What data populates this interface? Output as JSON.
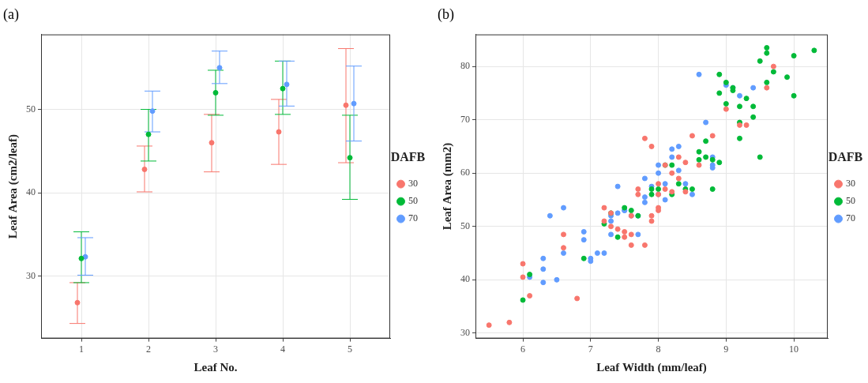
{
  "chart_data": [
    {
      "type": "scatter",
      "title": "(a)",
      "x_label": "Leaf No.",
      "y_label": "Leaf Area (cm2/leaf)",
      "legend_title": "DAFB",
      "legend": "right",
      "grid": true,
      "marker": "circle",
      "x": [
        1,
        2,
        3,
        4,
        5
      ],
      "xlim": [
        0.4,
        5.6
      ],
      "xticks": [
        1,
        2,
        3,
        4,
        5
      ],
      "ylim": [
        22.5,
        59
      ],
      "yticks": [
        30,
        40,
        50
      ],
      "series": [
        {
          "name": "30",
          "color": "#F8766D",
          "values": [
            26.8,
            42.8,
            46.0,
            47.3,
            50.5
          ],
          "error_low": [
            24.3,
            40.1,
            42.5,
            43.4,
            43.6
          ],
          "error_high": [
            29.2,
            45.6,
            49.4,
            51.2,
            57.3
          ]
        },
        {
          "name": "50",
          "color": "#00BA38",
          "values": [
            32.1,
            47.0,
            52.0,
            52.5,
            44.2
          ],
          "error_low": [
            29.2,
            43.8,
            49.3,
            49.4,
            39.2
          ],
          "error_high": [
            35.3,
            50.0,
            54.7,
            55.8,
            49.3
          ]
        },
        {
          "name": "70",
          "color": "#619CFF",
          "values": [
            32.3,
            49.8,
            55.0,
            53.0,
            50.7
          ],
          "error_low": [
            30.1,
            47.3,
            53.1,
            50.4,
            46.2
          ],
          "error_high": [
            34.6,
            52.2,
            57.0,
            55.8,
            55.2
          ]
        }
      ]
    },
    {
      "type": "scatter",
      "title": "(b)",
      "x_label": "Leaf Width (mm/leaf)",
      "y_label": "Leaf Area (mm2)",
      "legend_title": "DAFB",
      "legend": "right",
      "grid": true,
      "marker": "circle",
      "xlim": [
        5.3,
        10.5
      ],
      "xticks": [
        6,
        7,
        8,
        9,
        10
      ],
      "ylim": [
        29,
        86
      ],
      "yticks": [
        30,
        40,
        50,
        60,
        70,
        80
      ],
      "series": [
        {
          "name": "30",
          "color": "#F8766D",
          "x": [
            5.5,
            5.8,
            6.0,
            6.0,
            6.1,
            6.6,
            6.6,
            6.8,
            7.2,
            7.2,
            7.3,
            7.3,
            7.4,
            7.5,
            7.5,
            7.6,
            7.6,
            7.7,
            7.7,
            7.8,
            7.8,
            7.9,
            7.9,
            7.9,
            8.0,
            8.0,
            8.0,
            8.1,
            8.2,
            8.2,
            8.3,
            8.3,
            8.4,
            8.4,
            8.5,
            8.6,
            8.8,
            9.0,
            9.2,
            9.3,
            9.6,
            9.7,
            8.0,
            7.6,
            8.1
          ],
          "values": [
            31.5,
            32,
            43,
            40.5,
            37,
            48.5,
            46,
            36.5,
            53.5,
            51,
            52.5,
            50,
            49.5,
            49,
            48,
            46.5,
            48.5,
            56,
            57,
            46.5,
            66.5,
            65,
            52,
            51,
            53.5,
            53,
            58,
            57,
            56.5,
            60,
            59,
            63,
            62,
            56.5,
            67,
            61.5,
            67,
            72,
            69,
            69,
            76,
            80,
            56,
            52,
            61.5
          ]
        },
        {
          "name": "50",
          "color": "#00BA38",
          "x": [
            6.0,
            6.1,
            6.9,
            7.2,
            7.3,
            7.4,
            7.5,
            7.6,
            7.7,
            7.9,
            7.9,
            8.0,
            8.1,
            8.2,
            8.2,
            8.3,
            8.4,
            8.5,
            8.6,
            8.6,
            8.7,
            8.8,
            8.8,
            8.9,
            8.9,
            8.9,
            9.0,
            9.0,
            9.1,
            9.2,
            9.2,
            9.2,
            9.3,
            9.4,
            9.4,
            9.5,
            9.5,
            9.6,
            9.6,
            9.6,
            9.7,
            9.9,
            10.0,
            10.0,
            10.3,
            8.7,
            9.1
          ],
          "values": [
            36.2,
            41,
            44,
            50.5,
            52.5,
            48,
            53.5,
            53,
            52,
            57,
            56,
            57,
            61.5,
            61.5,
            56,
            58,
            57,
            57,
            64,
            62.5,
            66,
            57,
            62.5,
            62,
            78.5,
            75,
            77,
            73,
            76,
            72.5,
            66.5,
            69.5,
            74,
            72.5,
            70.5,
            63,
            81,
            82.5,
            77,
            83.5,
            79,
            78,
            82,
            74.5,
            83,
            63,
            75.5
          ]
        },
        {
          "name": "70",
          "color": "#619CFF",
          "x": [
            6.1,
            6.3,
            6.3,
            6.4,
            6.5,
            6.6,
            6.3,
            6.6,
            6.9,
            6.9,
            7.0,
            7.0,
            7.1,
            7.2,
            7.3,
            7.3,
            7.4,
            7.4,
            7.5,
            7.5,
            7.6,
            7.7,
            7.7,
            7.8,
            7.8,
            7.8,
            7.9,
            8.0,
            8.0,
            8.1,
            8.1,
            8.2,
            8.2,
            8.3,
            8.3,
            8.4,
            8.5,
            8.6,
            8.7,
            8.8,
            8.8,
            8.8,
            9.0,
            9.1,
            9.2,
            9.4,
            7.3,
            8.0
          ],
          "values": [
            40.5,
            42,
            39.5,
            52,
            40,
            53.5,
            44,
            45,
            49,
            47.5,
            44,
            43.5,
            45,
            45,
            51,
            48.5,
            52.5,
            57.5,
            53,
            53,
            52,
            48.5,
            52,
            55.5,
            54.5,
            59,
            57.5,
            56,
            61.5,
            58,
            55,
            64.5,
            63,
            65,
            60.5,
            58,
            56,
            78.5,
            69.5,
            61.5,
            63,
            61,
            76.5,
            76,
            74.5,
            76,
            52,
            60
          ]
        }
      ]
    }
  ]
}
